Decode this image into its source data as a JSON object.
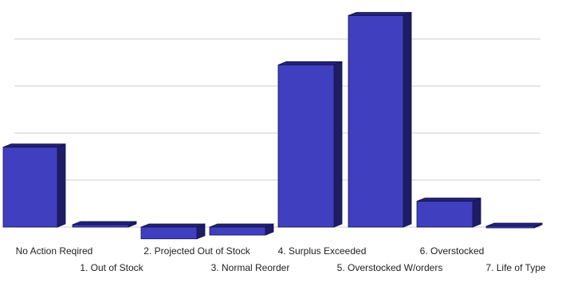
{
  "chart_data": {
    "type": "bar",
    "style": "3d",
    "categories": [
      "No Action Reqired",
      "1. Out of Stock",
      "2. Projected Out of Stock",
      "3. Normal Reorder",
      "4. Surplus Exceeded",
      "5. Overstocked W/orders",
      "6. Overstocked",
      "7. Life of Type"
    ],
    "values": [
      170,
      5,
      -25,
      -17,
      345,
      450,
      55,
      -1
    ],
    "ylim": [
      -30,
      460
    ],
    "gridlines": [
      0,
      100,
      200,
      300,
      400
    ],
    "grid": true,
    "legend": "none",
    "title": "",
    "xlabel": "",
    "ylabel": "",
    "colors": {
      "bar_front": "#3f3fbf",
      "bar_top": "#222277",
      "bar_side": "#1d1d66",
      "bar_edge": "#13134d",
      "gridline": "#d8d8d8"
    }
  }
}
